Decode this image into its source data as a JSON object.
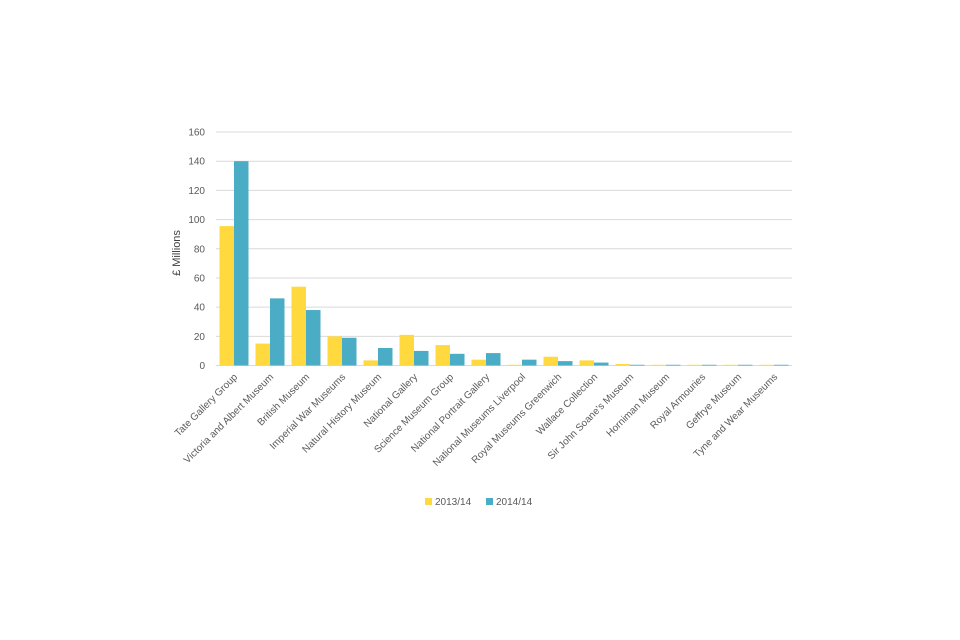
{
  "chart_data": {
    "type": "bar",
    "title": "",
    "ylabel": "£ Millions",
    "xlabel": "",
    "ylim": [
      0,
      160
    ],
    "yticks": [
      0,
      20,
      40,
      60,
      80,
      100,
      120,
      140,
      160
    ],
    "grid": true,
    "legend_position": "bottom",
    "categories": [
      "Tate Gallery Group",
      "Victoria and Albert Museum",
      "British Museum",
      "Imperial War Museums",
      "Natural History Museum",
      "National Gallery",
      "Science Museum Group",
      "National Portrait Gallery",
      "National Museums Liverpool",
      "Royal Museums Greenwich",
      "Wallace Collection",
      "Sir John Soane's Museum",
      "Horniman Museum",
      "Royal Armouries",
      "Geffrye Museum",
      "Tyne and Wear Museums"
    ],
    "series": [
      {
        "name": "2013/14",
        "color": "#FFD93D",
        "values": [
          95.5,
          15,
          54,
          20,
          3.5,
          21,
          14,
          4,
          0.5,
          6,
          3.5,
          1,
          0.5,
          0.5,
          0.5,
          0.5
        ]
      },
      {
        "name": "2014/14",
        "color": "#4BACC6",
        "values": [
          140,
          46,
          38,
          19,
          12,
          10,
          8,
          8.5,
          4,
          3,
          2,
          0.5,
          0.5,
          0.5,
          0.5,
          0.5
        ]
      }
    ]
  }
}
